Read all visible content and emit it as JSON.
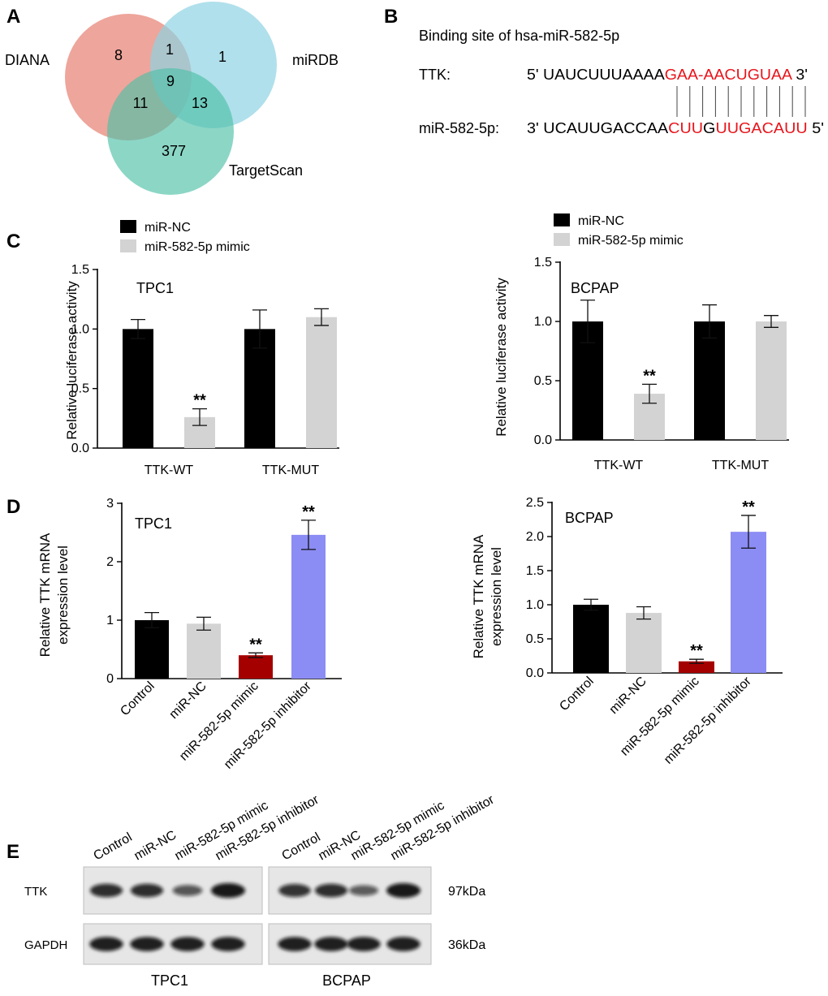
{
  "panel_labels": {
    "a": "A",
    "b": "B",
    "c": "C",
    "d": "D",
    "e": "E"
  },
  "venn": {
    "sets": [
      {
        "name": "DIANA",
        "color": "#e8877a"
      },
      {
        "name": "miRDB",
        "color": "#8fd3e3"
      },
      {
        "name": "TargetScan",
        "color": "#4fc0a8"
      }
    ],
    "counts": {
      "diana_only": "8",
      "diana_mirdb": "1",
      "mirdb_only": "1",
      "all_three": "9",
      "diana_targetscan": "11",
      "mirdb_targetscan": "13",
      "targetscan_only": "377"
    }
  },
  "binding": {
    "title": "Binding site of hsa-miR-582-5p",
    "ttk_label": "TTK:",
    "ttk_prefix": "5' UAUCUUUAAAA",
    "ttk_red": "GAA-AACUGUAA",
    "ttk_suffix": " 3'",
    "mir_label": "miR-582-5p:",
    "mir_prefix": "3' UCAUUGACCAA",
    "mir_red1": "CUU",
    "mir_mid": "G",
    "mir_red2": "UUGACAUU",
    "mir_suffix": " 5'",
    "highlight_color": "#e8141b",
    "pair_lines": 11
  },
  "chart_data": [
    {
      "id": "c_tpc1",
      "type": "bar",
      "title": "TPC1",
      "ylabel": "Relative luciferase activity",
      "ylim": [
        0,
        1.5
      ],
      "yticks": [
        "0.0",
        "0.5",
        "1.0",
        "1.5"
      ],
      "categories": [
        "TTK-WT",
        "TTK-MUT"
      ],
      "series": [
        {
          "name": "miR-NC",
          "color": "#000000",
          "values": [
            1.0,
            1.0
          ],
          "errors": [
            0.08,
            0.16
          ]
        },
        {
          "name": "miR-582-5p mimic",
          "color": "#d3d3d3",
          "values": [
            0.26,
            1.1
          ],
          "errors": [
            0.07,
            0.07
          ]
        }
      ],
      "annotations": [
        {
          "series": 1,
          "category": 0,
          "text": "**"
        }
      ]
    },
    {
      "id": "c_bcpap",
      "type": "bar",
      "title": "BCPAP",
      "ylabel": "Relative luciferase activity",
      "ylim": [
        0,
        1.5
      ],
      "yticks": [
        "0.0",
        "0.5",
        "1.0",
        "1.5"
      ],
      "categories": [
        "TTK-WT",
        "TTK-MUT"
      ],
      "series": [
        {
          "name": "miR-NC",
          "color": "#000000",
          "values": [
            1.0,
            1.0
          ],
          "errors": [
            0.18,
            0.14
          ]
        },
        {
          "name": "miR-582-5p mimic",
          "color": "#d3d3d3",
          "values": [
            0.39,
            1.0
          ],
          "errors": [
            0.08,
            0.05
          ]
        }
      ],
      "annotations": [
        {
          "series": 1,
          "category": 0,
          "text": "**"
        }
      ]
    },
    {
      "id": "d_tpc1",
      "type": "bar",
      "title": "TPC1",
      "ylabel": [
        "Relative TTK mRNA",
        "expression level"
      ],
      "ylim": [
        0,
        3
      ],
      "yticks": [
        "0",
        "1",
        "2",
        "3"
      ],
      "categories": [
        "Control",
        "miR-NC",
        "miR-582-5p mimic",
        "miR-582-5p inhibitor"
      ],
      "colors": [
        "#000000",
        "#d3d3d3",
        "#a50000",
        "#8c8cf5"
      ],
      "values": [
        1.0,
        0.94,
        0.4,
        2.46
      ],
      "errors": [
        0.13,
        0.11,
        0.04,
        0.25
      ],
      "annotations": [
        "",
        "",
        "**",
        "**"
      ]
    },
    {
      "id": "d_bcpap",
      "type": "bar",
      "title": "BCPAP",
      "ylabel": [
        "Relative TTK mRNA",
        "expression level"
      ],
      "ylim": [
        0,
        2.5
      ],
      "yticks": [
        "0.0",
        "0.5",
        "1.0",
        "1.5",
        "2.0",
        "2.5"
      ],
      "categories": [
        "Control",
        "miR-NC",
        "miR-582-5p mimic",
        "miR-582-5p inhibitor"
      ],
      "colors": [
        "#000000",
        "#d3d3d3",
        "#a50000",
        "#8c8cf5"
      ],
      "values": [
        1.0,
        0.88,
        0.17,
        2.07
      ],
      "errors": [
        0.08,
        0.09,
        0.03,
        0.24
      ],
      "annotations": [
        "",
        "",
        "**",
        "**"
      ]
    }
  ],
  "western": {
    "lane_labels": [
      "Control",
      "miR-NC",
      "miR-582-5p mimic",
      "miR-582-5p inhibitor"
    ],
    "rows": [
      {
        "label": "TTK",
        "size": "97kDa"
      },
      {
        "label": "GAPDH",
        "size": "36kDa"
      }
    ],
    "groups": [
      "TPC1",
      "BCPAP"
    ],
    "band_intensity": {
      "TTK": [
        [
          0.85,
          0.85,
          0.55,
          1.0
        ],
        [
          0.8,
          0.85,
          0.5,
          1.0
        ]
      ],
      "GAPDH": [
        [
          0.95,
          0.95,
          0.95,
          0.95
        ],
        [
          0.95,
          0.95,
          0.95,
          0.95
        ]
      ]
    }
  }
}
